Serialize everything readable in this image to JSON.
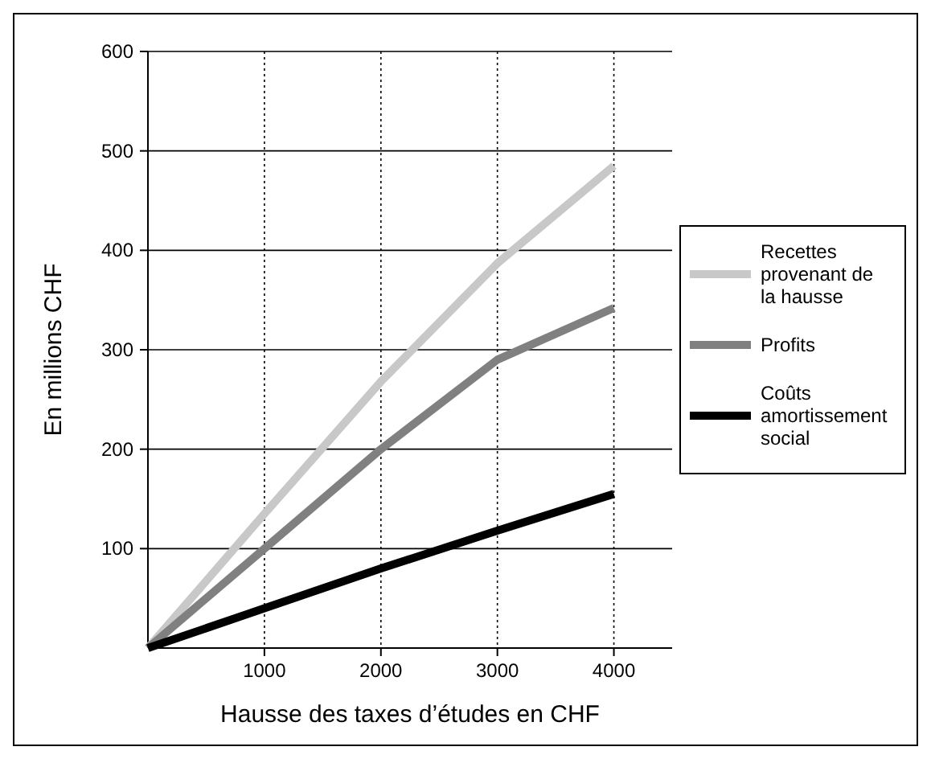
{
  "chart_data": {
    "type": "line",
    "xlabel": "Hausse des taxes d’études en CHF",
    "ylabel": "En millions CHF",
    "x": [
      0,
      1000,
      2000,
      3000,
      4000
    ],
    "series": [
      {
        "name": "Recettes provenant de la hausse",
        "color": "#c8c8c8",
        "values": [
          0,
          135,
          268,
          387,
          485
        ]
      },
      {
        "name": "Profits",
        "color": "#808080",
        "values": [
          0,
          100,
          200,
          290,
          342
        ]
      },
      {
        "name": "Coûts amortissement social",
        "color": "#000000",
        "values": [
          0,
          40,
          80,
          118,
          155
        ]
      }
    ],
    "xlim": [
      0,
      4500
    ],
    "xticks": [
      1000,
      2000,
      3000,
      4000
    ],
    "ylim": [
      0,
      600
    ],
    "yticks": [
      100,
      200,
      300,
      400,
      500,
      600
    ],
    "grid": true,
    "legend": "right",
    "marker": "none",
    "line_style": "solid"
  }
}
